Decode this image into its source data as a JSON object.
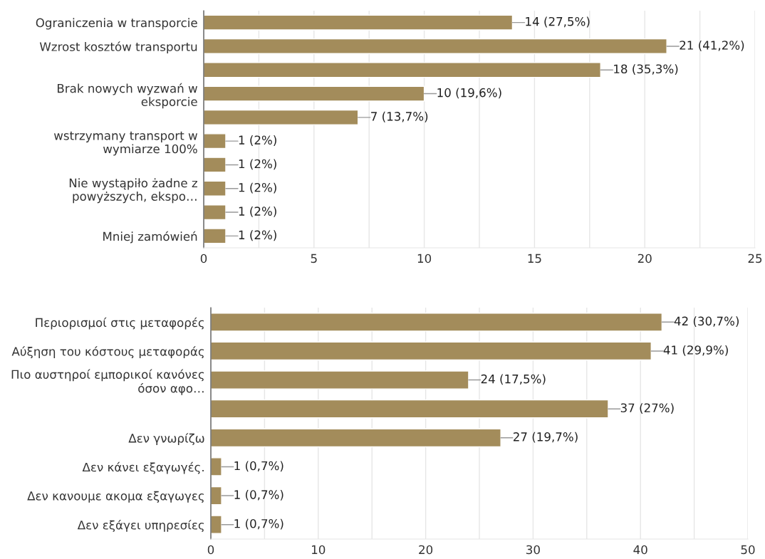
{
  "chart_data": [
    {
      "type": "bar",
      "orientation": "horizontal",
      "categories": [
        "Ograniczenia w transporcie",
        "Wzrost kosztów transportu",
        null,
        "Brak nowych wyzwań w\neksporcie",
        null,
        "wstrzymany transport w\nwymiarze 100%",
        null,
        "Nie wystąpiło żadne z\npowyższych, ekspo…",
        null,
        "Mniej zamówień"
      ],
      "series": [
        {
          "color": "#a38c5b",
          "values": [
            14,
            21,
            18,
            10,
            7,
            1,
            1,
            1,
            1,
            1
          ],
          "value_labels": [
            "14 (27,5%)",
            "21 (41,2%)",
            "18 (35,3%)",
            "10 (19,6%)",
            "7 (13,7%)",
            "1 (2%)",
            "1 (2%)",
            "1 (2%)",
            "1 (2%)",
            "1 (2%)"
          ]
        }
      ],
      "xlim": [
        0,
        25
      ],
      "xticks": [
        0,
        {
          "value": 2.5,
          "label": null
        },
        5,
        {
          "value": 7.5,
          "label": null
        },
        10,
        {
          "value": 12.5,
          "label": null
        },
        15,
        {
          "value": 17.5,
          "label": null
        },
        20,
        {
          "value": 22.5,
          "label": null
        },
        25
      ],
      "grid": "x",
      "legend": false
    },
    {
      "type": "bar",
      "orientation": "horizontal",
      "categories": [
        "Περιορισμοί στις μεταφορές",
        "Αύξηση του κόστους μεταφοράς",
        "Πιο αυστηροί εμπορικοί κανόνες\nόσον αφο…",
        null,
        "Δεν γνωρίζω",
        "Δεν κάνει εξαγωγές.",
        "Δεν κανουμε ακομα εξαγωγες",
        "Δεν εξάγει υπηρεσίες"
      ],
      "series": [
        {
          "color": "#a38c5b",
          "values": [
            42,
            41,
            24,
            37,
            27,
            1,
            1,
            1
          ],
          "value_labels": [
            "42 (30,7%)",
            "41 (29,9%)",
            "24 (17,5%)",
            "37 (27%)",
            "27 (19,7%)",
            "1 (0,7%)",
            "1 (0,7%)",
            "1 (0,7%)"
          ]
        }
      ],
      "xlim": [
        0,
        50
      ],
      "xticks": [
        0,
        {
          "value": 5,
          "label": null
        },
        10,
        {
          "value": 15,
          "label": null
        },
        20,
        {
          "value": 25,
          "label": null
        },
        30,
        {
          "value": 35,
          "label": null
        },
        40,
        {
          "value": 45,
          "label": null
        },
        50
      ],
      "grid": "x",
      "legend": false
    }
  ]
}
